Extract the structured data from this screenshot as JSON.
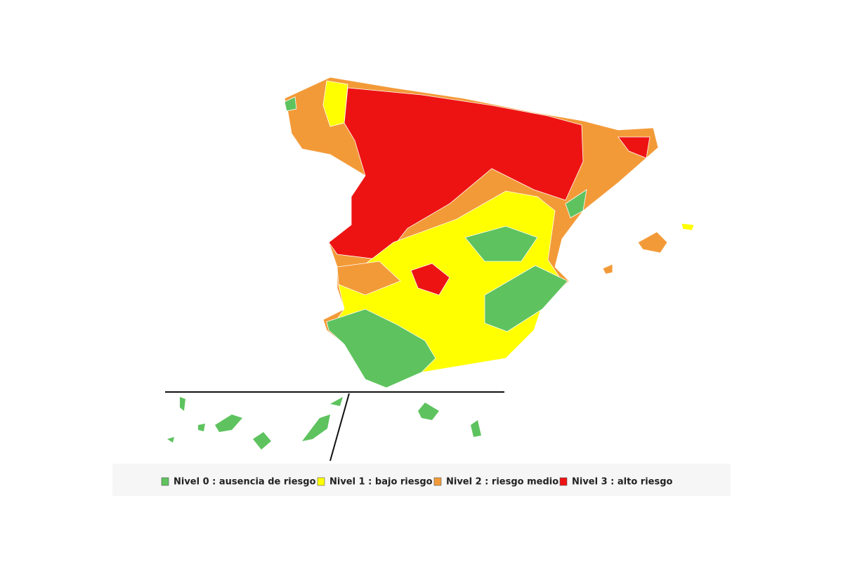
{
  "legend": {
    "items": [
      {
        "label": "Nivel 0 : ausencia de riesgo",
        "color": "#5ec35e"
      },
      {
        "label": "Nivel 1 : bajo riesgo",
        "color": "#ffff00"
      },
      {
        "label": "Nivel 2 : riesgo medio",
        "color": "#f39a38"
      },
      {
        "label": "Nivel 3 : alto riesgo",
        "color": "#ee1313"
      }
    ]
  }
}
